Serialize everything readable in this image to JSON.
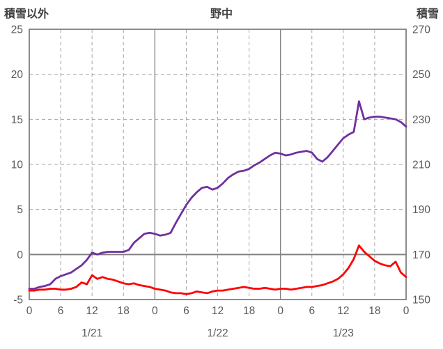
{
  "header": {
    "left_axis_title": "積雪以外",
    "chart_title": "野中",
    "right_axis_title": "積雪"
  },
  "chart_data": {
    "type": "line",
    "title": "野中",
    "left_axis": {
      "title": "積雪以外",
      "min": -5,
      "max": 25,
      "ticks": [
        -5,
        0,
        5,
        10,
        15,
        20,
        25
      ]
    },
    "right_axis": {
      "title": "積雪",
      "min": 150,
      "max": 270,
      "ticks": [
        150,
        170,
        190,
        210,
        230,
        250,
        270
      ]
    },
    "x_axis": {
      "min_hour": 0,
      "max_hour": 72,
      "tick_positions": [
        0,
        6,
        12,
        18,
        24,
        30,
        36,
        42,
        48,
        54,
        60,
        66,
        72
      ],
      "tick_labels": [
        "0",
        "6",
        "12",
        "18",
        "0",
        "6",
        "12",
        "18",
        "0",
        "6",
        "12",
        "18",
        "0"
      ],
      "solid_line_positions": [
        24,
        48
      ],
      "date_labels": [
        {
          "pos": 12,
          "label": "1/21"
        },
        {
          "pos": 36,
          "label": "1/22"
        },
        {
          "pos": 60,
          "label": "1/23"
        }
      ]
    },
    "zero_line_left_value": 0,
    "series": [
      {
        "name": "積雪以外",
        "axis": "left",
        "color": "#ff0000",
        "values": [
          -4.0,
          -4.0,
          -3.9,
          -3.9,
          -3.8,
          -3.8,
          -3.9,
          -3.9,
          -3.8,
          -3.6,
          -3.1,
          -3.3,
          -2.3,
          -2.7,
          -2.5,
          -2.7,
          -2.8,
          -3.0,
          -3.2,
          -3.3,
          -3.2,
          -3.4,
          -3.5,
          -3.6,
          -3.8,
          -3.9,
          -4.0,
          -4.2,
          -4.3,
          -4.3,
          -4.4,
          -4.3,
          -4.1,
          -4.2,
          -4.3,
          -4.1,
          -4.0,
          -4.0,
          -3.9,
          -3.8,
          -3.7,
          -3.6,
          -3.7,
          -3.8,
          -3.8,
          -3.7,
          -3.8,
          -3.9,
          -3.8,
          -3.8,
          -3.9,
          -3.8,
          -3.7,
          -3.6,
          -3.6,
          -3.5,
          -3.4,
          -3.2,
          -3.0,
          -2.7,
          -2.2,
          -1.5,
          -0.5,
          1.0,
          0.3,
          -0.2,
          -0.7,
          -1.0,
          -1.2,
          -1.3,
          -0.8,
          -2.0,
          -2.5
        ]
      },
      {
        "name": "積雪",
        "axis": "right",
        "color": "#7030a0",
        "values": [
          154.8,
          154.8,
          155.6,
          156.0,
          156.8,
          159.2,
          160.4,
          161.2,
          162.0,
          163.6,
          165.2,
          167.6,
          170.8,
          170.0,
          170.8,
          171.2,
          171.2,
          171.2,
          171.2,
          172.0,
          175.2,
          177.2,
          179.2,
          179.6,
          179.2,
          178.4,
          178.8,
          179.6,
          184.0,
          188.0,
          192.0,
          195.2,
          197.6,
          199.6,
          200.0,
          198.8,
          199.6,
          201.6,
          204.0,
          205.6,
          206.8,
          207.2,
          208.0,
          209.6,
          210.8,
          212.4,
          214.0,
          215.2,
          214.8,
          214.0,
          214.4,
          215.2,
          215.6,
          216.0,
          215.2,
          212.4,
          211.2,
          213.2,
          216.0,
          218.8,
          221.6,
          223.2,
          224.4,
          238.0,
          230.0,
          230.8,
          231.2,
          231.2,
          230.8,
          230.4,
          230.0,
          228.8,
          226.8
        ]
      }
    ],
    "style": {
      "frame_color": "#808080",
      "grid_color": "#a6a6a6",
      "day_line_color": "#808080",
      "zero_line_color": "#808080",
      "tick_text_color": "#595959",
      "title_text_color": "#404040",
      "legend": "none",
      "grid": "dashed"
    }
  }
}
